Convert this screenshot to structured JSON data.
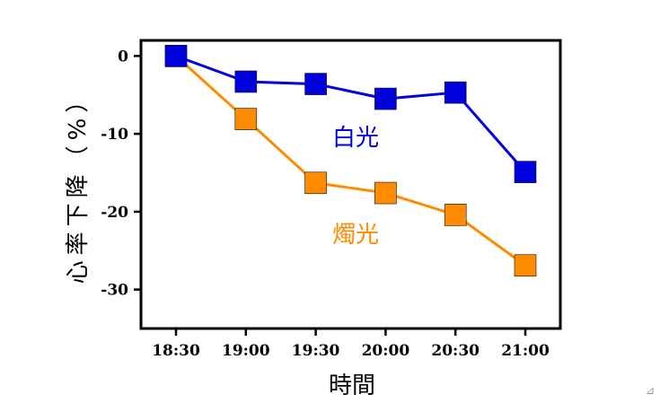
{
  "chart_data": {
    "type": "line",
    "xlabel": "時間",
    "ylabel": "心率下降（%）",
    "categories": [
      "18:30",
      "19:00",
      "19:30",
      "20:00",
      "20:30",
      "21:00"
    ],
    "ylim": [
      -35,
      2
    ],
    "yticks": [
      "0",
      "-10",
      "-20",
      "-30"
    ],
    "ytick_values": [
      0,
      -10,
      -20,
      -30
    ],
    "grid": false,
    "series": [
      {
        "name": "白光",
        "values": [
          0,
          -3.3,
          -3.6,
          -5.5,
          -4.7,
          -14.9
        ],
        "color": "#0000dd",
        "marker": "square"
      },
      {
        "name": "燭光",
        "values": [
          0,
          -8.1,
          -16.3,
          -17.6,
          -20.4,
          -26.9
        ],
        "color": "#ff8c00",
        "marker": "square"
      }
    ]
  },
  "corner_mark": "⊿"
}
